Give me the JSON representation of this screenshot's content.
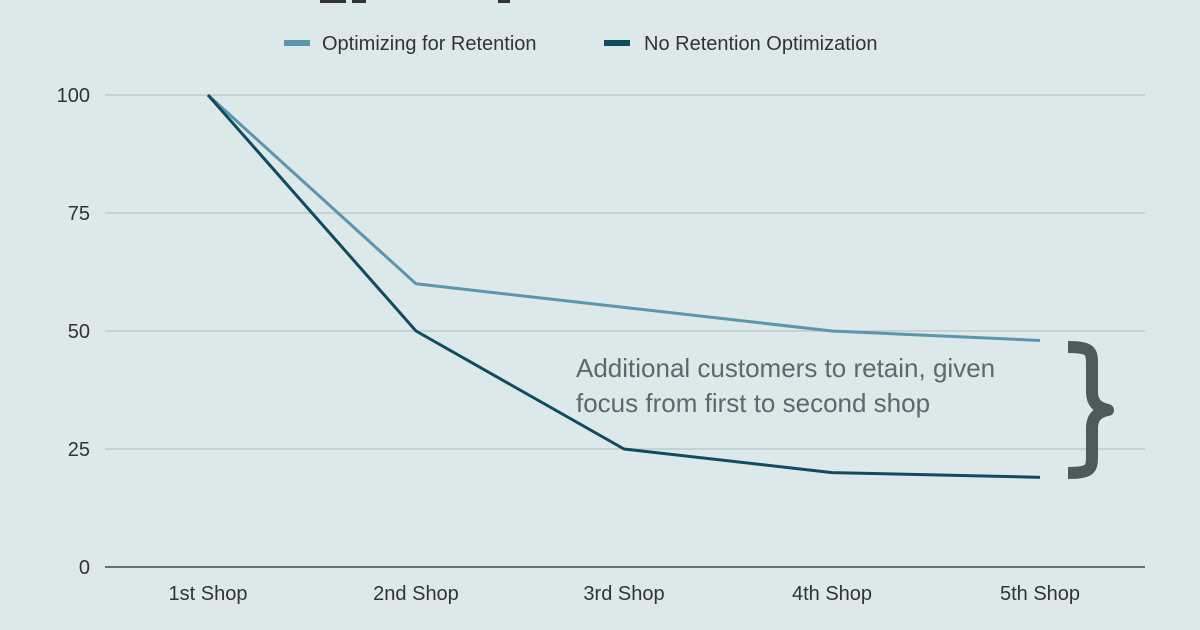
{
  "chart_data": {
    "type": "line",
    "title": "",
    "xlabel": "",
    "ylabel": "",
    "categories": [
      "1st Shop",
      "2nd Shop",
      "3rd Shop",
      "4th Shop",
      "5th Shop"
    ],
    "ylim": [
      0,
      100
    ],
    "yticks": [
      0,
      25,
      50,
      75,
      100
    ],
    "grid": true,
    "legend_position": "top-center",
    "series": [
      {
        "name": "Optimizing for Retention",
        "color": "#5b96ad",
        "values": [
          100,
          60,
          55,
          50,
          48
        ]
      },
      {
        "name": "No Retention Optimization",
        "color": "#0f4c5f",
        "values": [
          100,
          50,
          25,
          20,
          19
        ]
      }
    ],
    "annotation": {
      "lines": [
        "Additional customers to retain, given",
        "focus from first to second shop"
      ],
      "brace_color": "#4c5a5c",
      "text_color": "#5c6870"
    }
  }
}
